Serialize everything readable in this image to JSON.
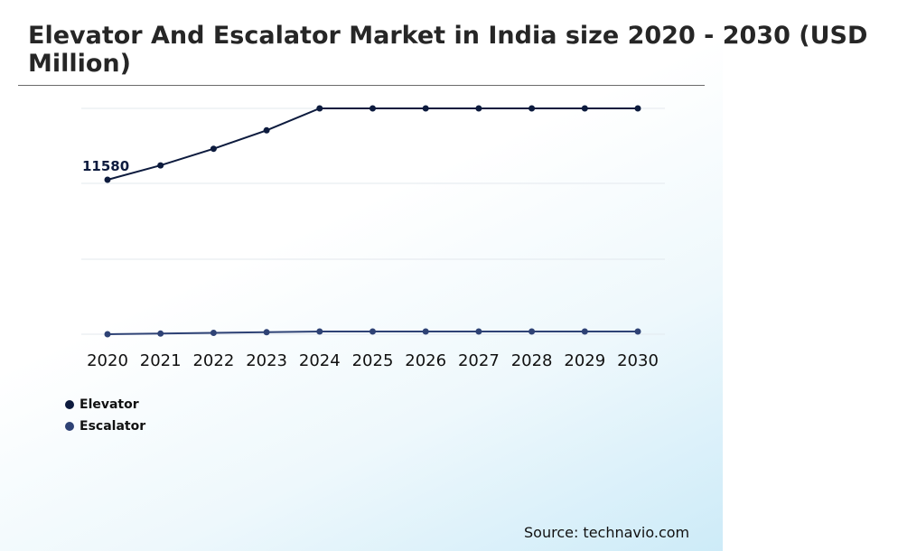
{
  "chart_data": {
    "type": "line",
    "title": "Elevator And Escalator Market in India size 2020 - 2030 (USD Million)",
    "x": [
      "2020",
      "2021",
      "2022",
      "2023",
      "2024",
      "2025",
      "2026",
      "2027",
      "2028",
      "2029",
      "2030"
    ],
    "series": [
      {
        "name": "Elevator",
        "color": "#0d1b3e",
        "values": [
          11580,
          12360,
          13260,
          14260,
          15450,
          15450,
          15450,
          15450,
          15450,
          15450,
          15450
        ]
      },
      {
        "name": "Escalator",
        "color": "#2e4275",
        "values": [
          2.4,
          2.6,
          2.8,
          3.0,
          3.2,
          3.2,
          3.2,
          3.2,
          3.2,
          3.2,
          3.2
        ],
        "scale_note": "plotted near baseline"
      }
    ],
    "data_labels": [
      {
        "series": "Elevator",
        "x": "2020",
        "text": "11580"
      }
    ],
    "grid": true,
    "legend_position": "bottom-left",
    "source": "Source: technavio.com"
  }
}
